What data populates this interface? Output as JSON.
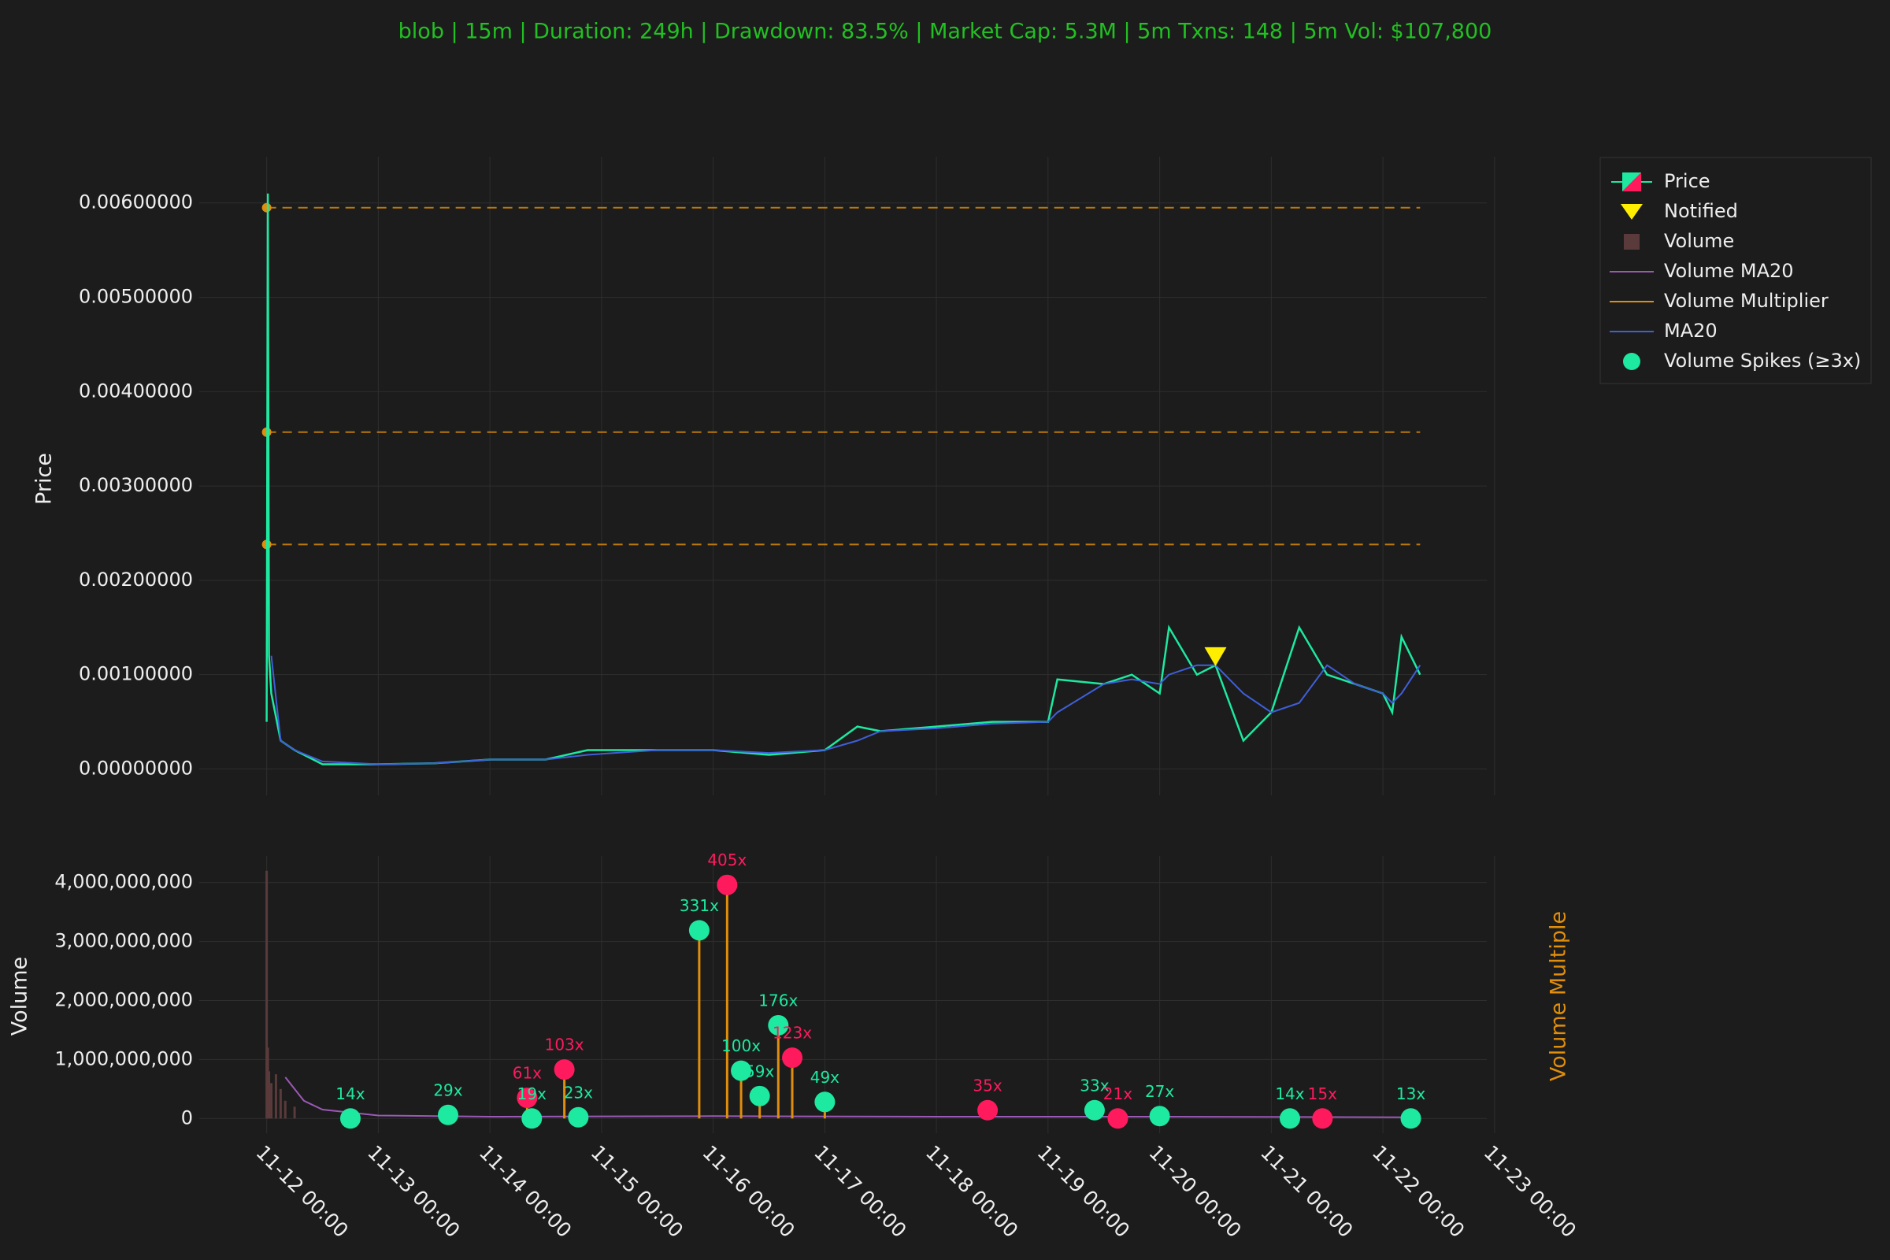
{
  "chart_data": [
    {
      "type": "line",
      "title": "blob | 15m | Duration: 249h | Drawdown: 83.5% | Market Cap: 5.3M | 5m Txns: 148 | 5m Vol: $107,800",
      "ylabel": "Price",
      "xlim": [
        "11-11 09:30",
        "11-22 22:20"
      ],
      "xticks": [
        "11-12 00:00",
        "11-13 00:00",
        "11-14 00:00",
        "11-15 00:00",
        "11-16 00:00",
        "11-17 00:00",
        "11-18 00:00",
        "11-19 00:00",
        "11-20 00:00",
        "11-21 00:00",
        "11-22 00:00",
        "11-23 00:00"
      ],
      "ylim": [
        -0.00028,
        0.00649
      ],
      "yticks": [
        {
          "value": 0,
          "label": "0.00000000"
        },
        {
          "value": 0.001,
          "label": "0.00100000"
        },
        {
          "value": 0.002,
          "label": "0.00200000"
        },
        {
          "value": 0.003,
          "label": "0.00300000"
        },
        {
          "value": 0.004,
          "label": "0.00400000"
        },
        {
          "value": 0.005,
          "label": "0.00500000"
        },
        {
          "value": 0.006,
          "label": "0.00600000"
        }
      ],
      "grid": true,
      "x": [
        "11-12 00:00",
        "11-12 00:15",
        "11-12 00:30",
        "11-12 01:00",
        "11-12 03:00",
        "11-12 06:00",
        "11-12 12:00",
        "11-13 00:00",
        "11-13 12:00",
        "11-14 00:00",
        "11-14 12:00",
        "11-14 21:00",
        "11-15 12:00",
        "11-16 00:00",
        "11-16 12:00",
        "11-17 00:00",
        "11-17 07:00",
        "11-17 12:00",
        "11-18 00:00",
        "11-18 12:00",
        "11-19 00:00",
        "11-19 02:00",
        "11-19 12:00",
        "11-19 18:00",
        "11-20 00:00",
        "11-20 02:00",
        "11-20 08:00",
        "11-20 12:00",
        "11-20 18:00",
        "11-21 00:00",
        "11-21 06:00",
        "11-21 12:00",
        "11-21 18:00",
        "11-22 00:00",
        "11-22 02:00",
        "11-22 04:00",
        "11-22 08:00"
      ],
      "series": [
        {
          "name": "Price",
          "color": "#1de9a0",
          "values": [
            0.0005,
            0.0061,
            0.0012,
            0.0008,
            0.0003,
            0.0002,
            5e-05,
            5e-05,
            6e-05,
            0.0001,
            0.0001,
            0.0002,
            0.0002,
            0.0002,
            0.00015,
            0.0002,
            0.00045,
            0.0004,
            0.00045,
            0.0005,
            0.0005,
            0.00095,
            0.0009,
            0.001,
            0.0008,
            0.0015,
            0.001,
            0.0011,
            0.0003,
            0.0006,
            0.0015,
            0.001,
            0.0009,
            0.0008,
            0.0006,
            0.0014,
            0.001
          ]
        },
        {
          "name": "MA20",
          "color": "#3f5fd8",
          "values": [
            null,
            null,
            null,
            0.0012,
            0.0003,
            0.0002,
            8e-05,
            5e-05,
            6e-05,
            0.0001,
            0.0001,
            0.00015,
            0.0002,
            0.0002,
            0.00017,
            0.0002,
            0.0003,
            0.0004,
            0.00043,
            0.00048,
            0.0005,
            0.0006,
            0.0009,
            0.00095,
            0.0009,
            0.001,
            0.0011,
            0.0011,
            0.0008,
            0.0006,
            0.0007,
            0.0011,
            0.0009,
            0.0008,
            0.0007,
            0.0008,
            0.0011
          ]
        }
      ],
      "levels": [
        0.00595,
        0.00357,
        0.00238
      ],
      "level_color": "#e08e0b",
      "notified": {
        "name": "Notified",
        "color": "#ffee00",
        "x": "11-20 12:00",
        "value": 0.00119
      }
    },
    {
      "type": "bar",
      "ylabel": "Volume",
      "y2label": "Volume Multiple",
      "ylim": [
        -250000000,
        4450000000
      ],
      "yticks": [
        0,
        {
          "value": 1000000000,
          "label": "1,000,000,000"
        },
        {
          "value": 2000000000,
          "label": "2,000,000,000"
        },
        {
          "value": 3000000000,
          "label": "3,000,000,000"
        },
        {
          "value": 4000000000,
          "label": "4,000,000,000"
        }
      ],
      "grid": true,
      "series": [
        {
          "name": "Volume",
          "color": "#5a3a3a",
          "x": [
            "11-12 00:00",
            "11-12 00:15",
            "11-12 00:30",
            "11-12 01:00",
            "11-12 02:00",
            "11-12 03:00",
            "11-12 04:00",
            "11-12 06:00"
          ],
          "values": [
            4200000000,
            1200000000,
            800000000,
            600000000,
            750000000,
            500000000,
            300000000,
            200000000
          ]
        },
        {
          "name": "Volume MA20",
          "color": "#9b59b6",
          "x": [
            "11-12 04:00",
            "11-12 08:00",
            "11-12 12:00",
            "11-12 18:00",
            "11-13 00:00",
            "11-14 00:00",
            "11-16 00:00",
            "11-18 00:00",
            "11-20 00:00",
            "11-22 08:00"
          ],
          "values": [
            700000000,
            300000000,
            150000000,
            100000000,
            50000000,
            30000000,
            40000000,
            30000000,
            30000000,
            20000000
          ]
        },
        {
          "name": "Volume Multiplier",
          "color": "#e08e0b"
        },
        {
          "name": "Volume Spikes (≥3x)",
          "x": [
            "11-12 18:00",
            "11-13 15:00",
            "11-14 08:00",
            "11-14 09:00",
            "11-14 16:00",
            "11-14 19:00",
            "11-15 21:00",
            "11-16 03:00",
            "11-16 06:00",
            "11-16 10:00",
            "11-16 14:00",
            "11-16 17:00",
            "11-17 00:00",
            "11-18 11:00",
            "11-19 10:00",
            "11-19 15:00",
            "11-20 00:00",
            "11-21 04:00",
            "11-21 11:00",
            "11-22 06:00"
          ],
          "values": [
            0,
            60000000,
            350000000,
            0,
            830000000,
            20000000,
            3190000000,
            3960000000,
            810000000,
            380000000,
            1580000000,
            1030000000,
            280000000,
            140000000,
            140000000,
            0,
            40000000,
            0,
            0,
            0
          ],
          "labels": [
            "14x",
            "29x",
            "61x",
            "19x",
            "103x",
            "23x",
            "331x",
            "405x",
            "100x",
            "59x",
            "176x",
            "123x",
            "49x",
            "35x",
            "33x",
            "21x",
            "27x",
            "14x",
            "15x",
            "13x"
          ],
          "colors": [
            "#1de9a0",
            "#1de9a0",
            "#ff1a5e",
            "#1de9a0",
            "#ff1a5e",
            "#1de9a0",
            "#1de9a0",
            "#ff1a5e",
            "#1de9a0",
            "#1de9a0",
            "#1de9a0",
            "#ff1a5e",
            "#1de9a0",
            "#ff1a5e",
            "#1de9a0",
            "#ff1a5e",
            "#1de9a0",
            "#1de9a0",
            "#ff1a5e",
            "#1de9a0"
          ]
        }
      ]
    }
  ]
}
